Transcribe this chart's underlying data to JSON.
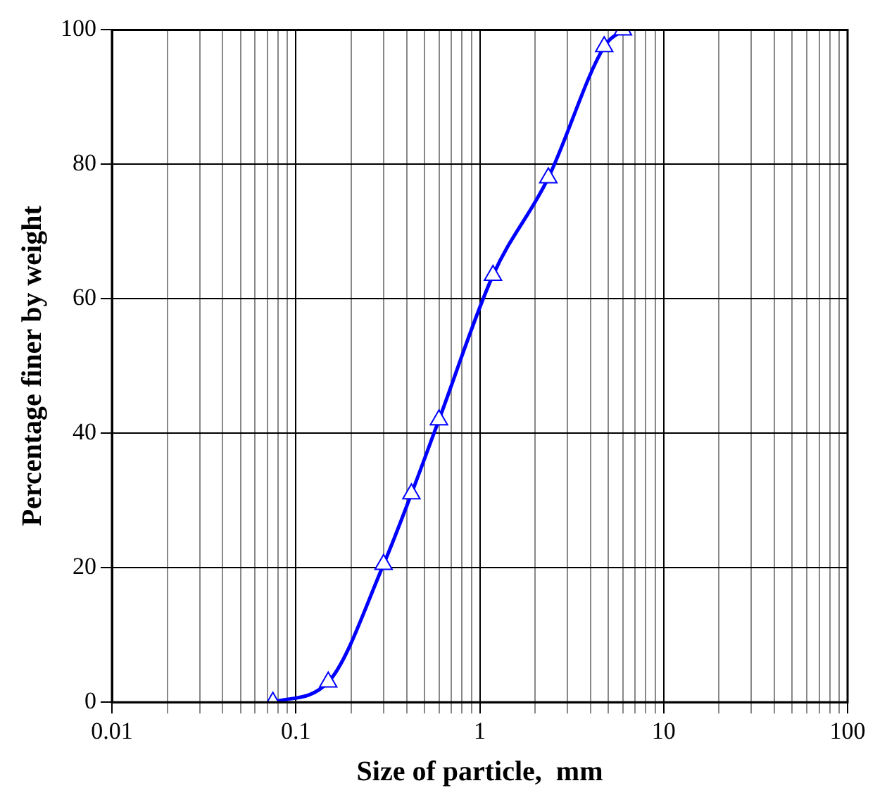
{
  "chart_data": {
    "type": "line",
    "xlabel": "Size of particle,  mm",
    "ylabel": "Percentage finer by weight",
    "x": [
      0.075,
      0.15,
      0.3,
      0.425,
      0.6,
      1.18,
      2.36,
      4.75,
      6
    ],
    "series": [
      {
        "color": "#0000ff",
        "values": [
          0,
          3,
          20.5,
          31,
          42,
          63.5,
          78,
          97.5,
          100
        ]
      }
    ],
    "log": "x",
    "xlim": [
      0.01,
      100
    ],
    "ylim": [
      0,
      100
    ],
    "xticks": [
      0.01,
      {
        "value": 0.02,
        "label": null
      },
      {
        "value": 0.03,
        "label": null
      },
      {
        "value": 0.04,
        "label": null
      },
      {
        "value": 0.05,
        "label": null
      },
      {
        "value": 0.06,
        "label": null
      },
      {
        "value": 0.07,
        "label": null
      },
      {
        "value": 0.08,
        "label": null
      },
      {
        "value": 0.09,
        "label": null
      },
      0.1,
      {
        "value": 0.2,
        "label": null
      },
      {
        "value": 0.3,
        "label": null
      },
      {
        "value": 0.4,
        "label": null
      },
      {
        "value": 0.5,
        "label": null
      },
      {
        "value": 0.6,
        "label": null
      },
      {
        "value": 0.7,
        "label": null
      },
      {
        "value": 0.8,
        "label": null
      },
      {
        "value": 0.9,
        "label": null
      },
      1,
      {
        "value": 2,
        "label": null
      },
      {
        "value": 3,
        "label": null
      },
      {
        "value": 4,
        "label": null
      },
      {
        "value": 5,
        "label": null
      },
      {
        "value": 6,
        "label": null
      },
      {
        "value": 7,
        "label": null
      },
      {
        "value": 8,
        "label": null
      },
      {
        "value": 9,
        "label": null
      },
      10,
      {
        "value": 20,
        "label": null
      },
      {
        "value": 30,
        "label": null
      },
      {
        "value": 40,
        "label": null
      },
      {
        "value": 50,
        "label": null
      },
      {
        "value": 60,
        "label": null
      },
      {
        "value": 70,
        "label": null
      },
      {
        "value": 80,
        "label": null
      },
      {
        "value": 90,
        "label": null
      },
      100
    ],
    "yticks": [
      0,
      20,
      40,
      60,
      80,
      100
    ],
    "grid": true,
    "marker": "triangle",
    "line_style": "solid",
    "legend": false
  }
}
